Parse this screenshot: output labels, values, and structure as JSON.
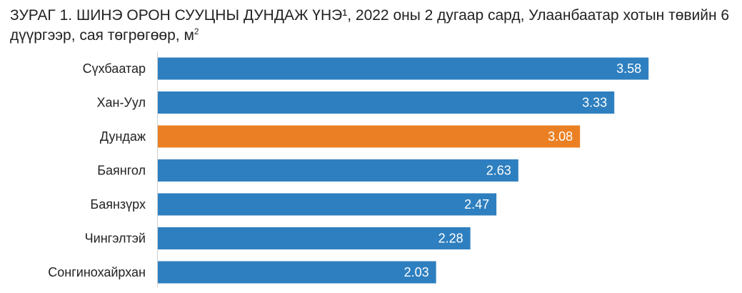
{
  "title": {
    "text": "ЗУРАГ 1. ШИНЭ ОРОН СУУЦНЫ ДУНДАЖ ҮНЭ¹, 2022 оны 2 дугаар сард, Улаанбаатар хотын төвийн 6 дүүргээр, сая төгрөгөөр, м",
    "unit_superscript": "2"
  },
  "colors": {
    "district_bar": "#2e7fbf",
    "average_bar": "#ea8023",
    "axis": "#d0d0d0"
  },
  "chart_data": {
    "type": "bar",
    "orientation": "horizontal",
    "title": "ЗУРАГ 1. ШИНЭ ОРОН СУУЦНЫ ДУНДАЖ ҮНЭ¹, 2022 оны 2 дугаар сард, Улаанбаатар хотын төвийн 6 дүүргээр, сая төгрөгөөр, м2",
    "categories": [
      "Сүхбаатар",
      "Хан-Уул",
      "Дундаж",
      "Баянгол",
      "Баянзүрх",
      "Чингэлтэй",
      "Сонгинохайрхан"
    ],
    "values": [
      3.58,
      3.33,
      3.08,
      2.63,
      2.47,
      2.28,
      2.03
    ],
    "value_labels": [
      "3.58",
      "3.33",
      "3.08",
      "2.63",
      "2.47",
      "2.28",
      "2.03"
    ],
    "highlight": "Дундаж",
    "xlim": [
      0,
      3.85
    ],
    "xlabel": "",
    "ylabel": "",
    "grid": false,
    "legend": "none"
  }
}
